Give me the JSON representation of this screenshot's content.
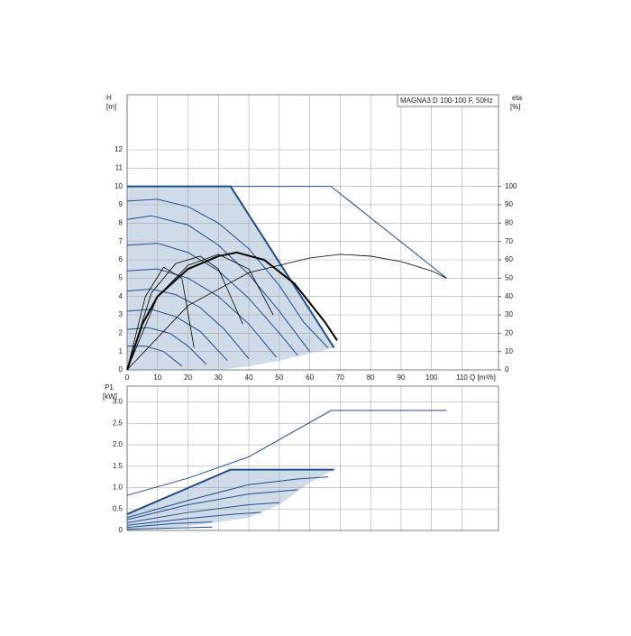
{
  "chart_data": [
    {
      "type": "line",
      "title": "MAGNA3 D 100-100 F, 50Hz",
      "y_label": "H",
      "y_unit": "[m]",
      "y2_label": "eta",
      "y2_unit": "[%]",
      "x_label": "Q [m³/h]",
      "xlim": [
        0,
        122
      ],
      "xticks": [
        0,
        10,
        20,
        30,
        40,
        50,
        60,
        70,
        80,
        90,
        100,
        110
      ],
      "ylim": [
        0,
        15
      ],
      "yticks": [
        0,
        1,
        2,
        3,
        4,
        5,
        6,
        7,
        8,
        9,
        10,
        11,
        12
      ],
      "y2lim": [
        0,
        150
      ],
      "y2ticks": [
        0,
        10,
        20,
        30,
        40,
        50,
        60,
        70,
        80,
        90,
        100
      ],
      "grid": true,
      "region": {
        "color": "#cfdbe8",
        "x": [
          0,
          0,
          34,
          68,
          60,
          50,
          40,
          30
        ],
        "values": [
          0,
          10,
          10,
          1.2,
          0.9,
          0.5,
          0.2,
          0
        ]
      },
      "series": [
        {
          "color": "#1f4e8c",
          "width": 1,
          "x": [
            0,
            10,
            20,
            30,
            40,
            50,
            58,
            66
          ],
          "values": [
            9.2,
            9.3,
            8.9,
            8.0,
            6.6,
            4.6,
            2.6,
            1.2
          ]
        },
        {
          "color": "#1f4e8c",
          "width": 1,
          "x": [
            0,
            8,
            20,
            30,
            40,
            50,
            60
          ],
          "values": [
            8.2,
            8.4,
            7.9,
            6.8,
            5.2,
            3.2,
            1.0
          ]
        },
        {
          "color": "#1f4e8c",
          "width": 1,
          "x": [
            0,
            10,
            20,
            30,
            40,
            50,
            56
          ],
          "values": [
            6.8,
            6.9,
            6.4,
            5.4,
            3.9,
            2.0,
            0.8
          ]
        },
        {
          "color": "#1f4e8c",
          "width": 1,
          "x": [
            0,
            10,
            20,
            30,
            40,
            49
          ],
          "values": [
            5.4,
            5.5,
            5.0,
            4.0,
            2.5,
            0.7
          ]
        },
        {
          "color": "#1f4e8c",
          "width": 1,
          "x": [
            0,
            8,
            16,
            24,
            32,
            40
          ],
          "values": [
            4.3,
            4.4,
            4.1,
            3.4,
            2.2,
            0.6
          ]
        },
        {
          "color": "#1f4e8c",
          "width": 1,
          "x": [
            0,
            8,
            16,
            24,
            33
          ],
          "values": [
            3.2,
            3.3,
            2.9,
            2.1,
            0.5
          ]
        },
        {
          "color": "#1f4e8c",
          "width": 1,
          "x": [
            0,
            7,
            14,
            20,
            26
          ],
          "values": [
            2.2,
            2.3,
            2.0,
            1.3,
            0.3
          ]
        },
        {
          "color": "#1f4e8c",
          "width": 1,
          "x": [
            0,
            6,
            12,
            18
          ],
          "values": [
            1.3,
            1.3,
            1.0,
            0.2
          ]
        },
        {
          "color": "#1f4e8c",
          "width": 1,
          "x": [
            0,
            67,
            105
          ],
          "values": [
            10,
            10,
            5
          ]
        },
        {
          "color": "#1f4e8c",
          "width": 2,
          "x": [
            0,
            34,
            68
          ],
          "values": [
            10,
            10,
            1.2
          ]
        },
        {
          "color": "#000000",
          "width": 0.8,
          "axis": "y2",
          "x": [
            0,
            8,
            16,
            24,
            30,
            38
          ],
          "values": [
            0,
            42,
            58,
            62,
            55,
            25
          ]
        },
        {
          "color": "#000000",
          "width": 0.8,
          "axis": "y2",
          "x": [
            0,
            6,
            12,
            18,
            22
          ],
          "values": [
            0,
            40,
            56,
            50,
            12
          ]
        },
        {
          "color": "#000000",
          "width": 0.8,
          "axis": "y2",
          "axis_note_free": null,
          "x": [
            0,
            10,
            20,
            30,
            40,
            48
          ],
          "values": [
            0,
            40,
            57,
            63,
            55,
            30
          ]
        },
        {
          "color": "#000000",
          "width": 0.8,
          "axis": "y2",
          "x": [
            0,
            20,
            40,
            60,
            70,
            80,
            90,
            100,
            105
          ],
          "values": [
            0,
            35,
            53,
            61,
            63,
            62,
            59,
            54,
            50
          ]
        },
        {
          "color": "#000000",
          "width": 2,
          "axis": "y2",
          "x": [
            0,
            5,
            10,
            20,
            30,
            36,
            45,
            55,
            65,
            69
          ],
          "values": [
            0,
            25,
            40,
            55,
            62,
            64,
            60,
            47,
            26,
            16
          ]
        }
      ]
    },
    {
      "type": "line",
      "y_label": "P1",
      "y_unit": "[kW]",
      "xlim": [
        0,
        122
      ],
      "xticks": [
        0,
        10,
        20,
        30,
        40,
        50,
        60,
        70,
        80,
        90,
        100,
        110
      ],
      "ylim": [
        0,
        3.37
      ],
      "yticks": [
        0,
        0.5,
        {
          "value": 1,
          "label": "1.0"
        },
        1.5,
        {
          "value": 2,
          "label": "2.0"
        },
        2.5,
        {
          "value": 3,
          "label": "3.0"
        }
      ],
      "grid": true,
      "region": {
        "color": "#cfdbe8",
        "x": [
          0,
          0,
          34,
          68,
          60,
          50,
          40,
          20,
          0
        ],
        "values": [
          0,
          0.38,
          1.42,
          1.42,
          1.12,
          0.6,
          0.3,
          0.1,
          0
        ]
      },
      "series": [
        {
          "color": "#1f4e8c",
          "width": 1,
          "x": [
            0,
            20,
            40,
            56,
            66
          ],
          "values": [
            0.3,
            0.7,
            1.07,
            1.2,
            1.25
          ]
        },
        {
          "color": "#1f4e8c",
          "width": 1,
          "x": [
            0,
            20,
            40,
            56
          ],
          "values": [
            0.25,
            0.6,
            0.85,
            0.95
          ]
        },
        {
          "color": "#1f4e8c",
          "width": 1,
          "x": [
            0,
            20,
            40,
            50
          ],
          "values": [
            0.18,
            0.42,
            0.6,
            0.65
          ]
        },
        {
          "color": "#1f4e8c",
          "width": 1,
          "x": [
            0,
            20,
            35,
            44
          ],
          "values": [
            0.12,
            0.28,
            0.38,
            0.42
          ]
        },
        {
          "color": "#1f4e8c",
          "width": 1,
          "x": [
            0,
            15,
            28
          ],
          "values": [
            0.07,
            0.16,
            0.2
          ]
        },
        {
          "color": "#1f4e8c",
          "width": 1,
          "x": [
            0,
            28
          ],
          "values": [
            0.03,
            0.08
          ]
        },
        {
          "color": "#1f4e8c",
          "width": 1,
          "x": [
            0,
            20,
            40,
            67,
            105
          ],
          "values": [
            0.82,
            1.22,
            1.72,
            2.8,
            2.8
          ]
        },
        {
          "color": "#1f4e8c",
          "width": 2,
          "x": [
            0,
            34,
            68
          ],
          "values": [
            0.38,
            1.42,
            1.42
          ]
        }
      ]
    }
  ]
}
